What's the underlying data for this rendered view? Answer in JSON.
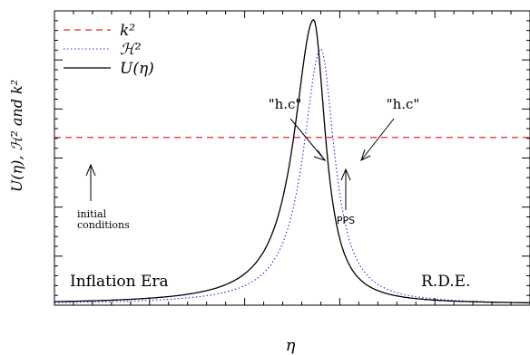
{
  "chart_data": {
    "type": "line",
    "xlabel": "η",
    "ylabel": "U(η), ℋ² and k²",
    "xlim": [
      0,
      1
    ],
    "ylim": [
      0,
      1
    ],
    "grid": false,
    "legend_position": "top-left",
    "series": [
      {
        "name": "k²",
        "style": "dashed",
        "color": "#e8262e",
        "constant": 0.57
      },
      {
        "name": "ℋ²",
        "style": "dotted",
        "color": "#2b2bd6",
        "peak_x": 0.56,
        "peak_y": 0.87,
        "width_left": 0.045,
        "width_right": 0.035,
        "floor": 0.003
      },
      {
        "name": "U(η)",
        "style": "solid",
        "color": "#000000",
        "peak_x": 0.545,
        "peak_y": 0.97,
        "width_left": 0.05,
        "width_right": 0.03,
        "floor": 0.004
      }
    ],
    "annotations": [
      {
        "text": "\"h.c\"",
        "position": "upper-left of peak"
      },
      {
        "text": "\"h.c\"",
        "position": "upper-right of peak"
      },
      {
        "text": "initial",
        "position": "left, below k² line"
      },
      {
        "text": "conditions",
        "position": "left, below k² line"
      },
      {
        "text": "PPS",
        "position": "under peak"
      },
      {
        "text": "Inflation Era",
        "position": "bottom-left"
      },
      {
        "text": "R.D.E.",
        "position": "bottom-right"
      }
    ]
  }
}
